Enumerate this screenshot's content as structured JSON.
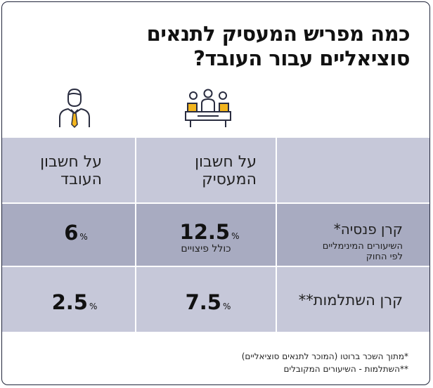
{
  "title": {
    "line1": "כמה מפריש המעסיק לתנאים",
    "line2": "סוציאליים עבור העובד?"
  },
  "icons": {
    "employer": "meeting-table-icon",
    "employee": "businessman-icon"
  },
  "colors": {
    "row_light": "#c6c8d9",
    "row_dark": "#a8abc1",
    "accent": "#f2b51e",
    "border": "#20243a"
  },
  "headers": {
    "employer_line1": "על חשבון",
    "employer_line2": "המעסיק",
    "employee_line1": "על חשבון",
    "employee_line2": "העובד"
  },
  "rows": [
    {
      "label": "קרן פנסיה*",
      "sublabel_line1": "השיעורים המינימליים",
      "sublabel_line2": "לפי החוק",
      "employer_value": "12.5",
      "employer_unit": "%",
      "employer_note": "כולל פיצויים",
      "employee_value": "6",
      "employee_unit": "%"
    },
    {
      "label": "קרן השתלמות**",
      "employer_value": "7.5",
      "employer_unit": "%",
      "employee_value": "2.5",
      "employee_unit": "%"
    }
  ],
  "footnotes": [
    "*מתוך השכר ברוטו (המוכר לתנאים סוציאליים)",
    "**השתלמות - השיעורים המקובלים"
  ]
}
